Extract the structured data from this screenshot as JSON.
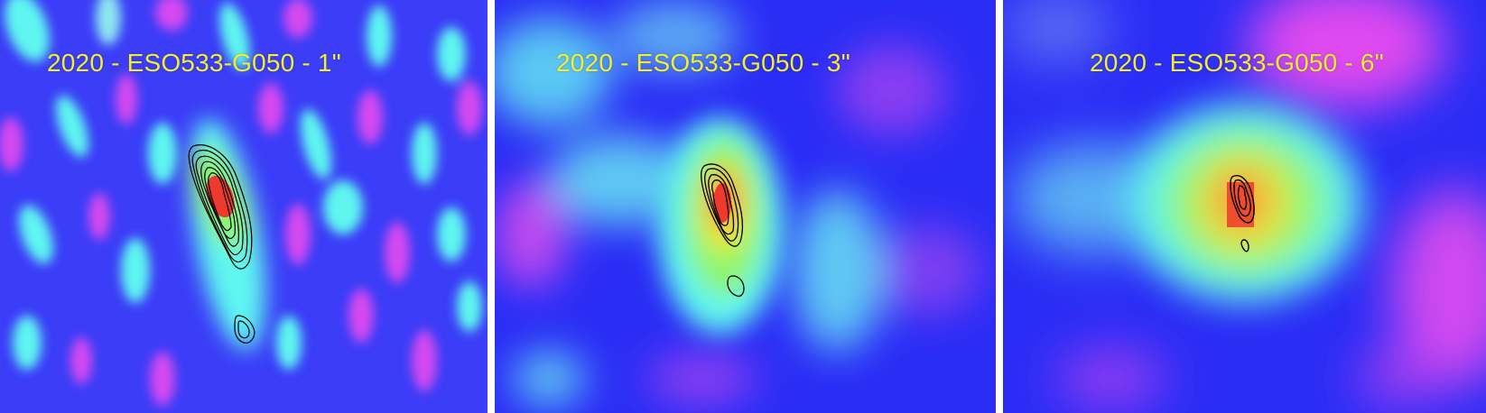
{
  "panels": [
    {
      "label": "2020 - ESO533-G050 - 1\"",
      "resolution": "1\""
    },
    {
      "label": "2020 - ESO533-G050 - 3\"",
      "resolution": "3\""
    },
    {
      "label": "2020 - ESO533-G050 - 6\"",
      "resolution": "6\""
    }
  ],
  "colors": {
    "background_blue": "#2a2df5",
    "magenta": "#d548f0",
    "cyan": "#5ef6f0",
    "green": "#8ef56a",
    "yellow": "#f2ee2c",
    "orange": "#f59a3c",
    "red": "#ee3a2c",
    "contour": "#000000",
    "separator": "#ffffff"
  },
  "colormap": "blue-cyan-green-yellow-red",
  "contour_overlay": true
}
